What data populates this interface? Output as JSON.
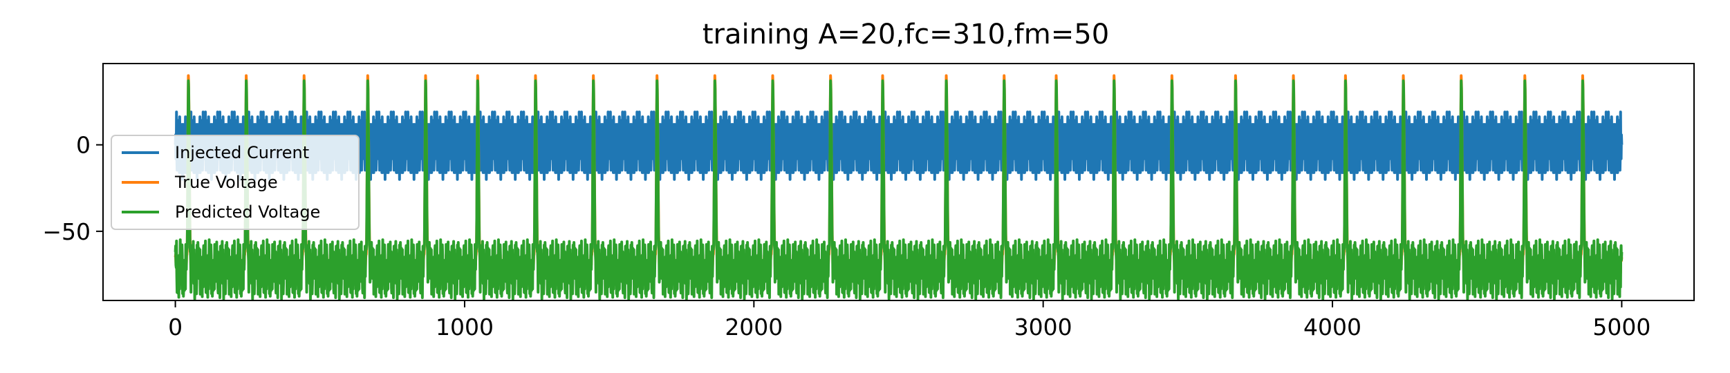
{
  "chart_data": {
    "type": "line",
    "title": "training A=20,fc=310,fm=50",
    "xlabel": "",
    "ylabel": "",
    "xlim": [
      -250,
      5250
    ],
    "ylim": [
      -90,
      47
    ],
    "xticks": [
      0,
      1000,
      2000,
      3000,
      4000,
      5000
    ],
    "xtick_labels": [
      "0",
      "1000",
      "2000",
      "3000",
      "4000",
      "5000"
    ],
    "yticks": [
      0,
      -50
    ],
    "ytick_labels": [
      "0",
      "−50"
    ],
    "grid": false,
    "legend_position": "center-left",
    "spike_times": [
      45,
      245,
      445,
      665,
      865,
      1045,
      1245,
      1445,
      1665,
      1865,
      2065,
      2265,
      2445,
      2665,
      2865,
      3045,
      3245,
      3445,
      3665,
      3865,
      4045,
      4245,
      4445,
      4665,
      4865
    ],
    "series": [
      {
        "name": "Injected Current",
        "color": "#1f77b4",
        "model": "A*sin(2*pi*fc*t)*sin(2*pi*fm*t)",
        "amplitude": 20,
        "fc": 310,
        "fm": 50,
        "x_range": [
          0,
          5000
        ]
      },
      {
        "name": "True Voltage",
        "color": "#ff7f0e",
        "resting": -65,
        "trough": -75,
        "peak": 40,
        "x_range": [
          0,
          5000
        ]
      },
      {
        "name": "Predicted Voltage",
        "color": "#2ca02c",
        "resting": -62,
        "trough": -82,
        "peak": 37,
        "x_range": [
          0,
          5000
        ]
      }
    ]
  }
}
